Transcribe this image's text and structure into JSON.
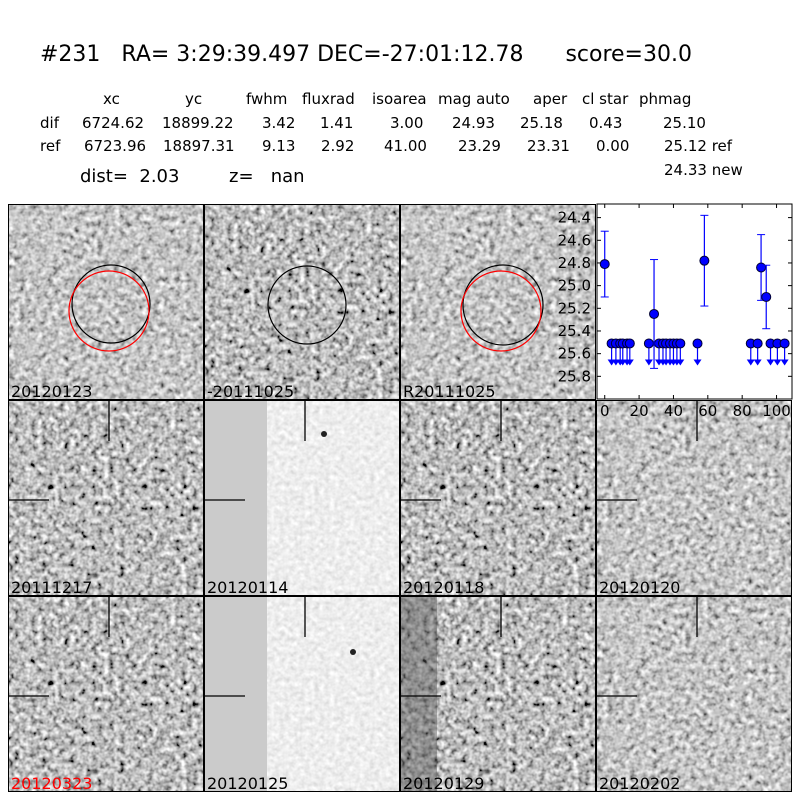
{
  "title": {
    "id": "#231",
    "ra": "RA= 3:29:39.497",
    "dec": "DEC=-27:01:12.78",
    "score": "score=30.0"
  },
  "table": {
    "headers": [
      "xc",
      "yc",
      "fwhm",
      "fluxrad",
      "isoarea",
      "mag auto",
      "aper",
      "cl star",
      "phmag"
    ],
    "dif": {
      "label": "dif",
      "values": [
        "6724.62",
        "18899.22",
        "3.42",
        "1.41",
        "3.00",
        "24.93",
        "25.18",
        "0.43",
        "25.10"
      ]
    },
    "ref": {
      "label": "ref",
      "values": [
        "6723.96",
        "18897.31",
        "9.13",
        "2.92",
        "41.00",
        "23.29",
        "23.31",
        "0.00",
        "25.12 ref"
      ]
    },
    "new_mag": "24.33 new",
    "dist": "dist=  2.03",
    "z": "z=   nan"
  },
  "stamps": [
    {
      "label": "20120123",
      "color": "#000000"
    },
    {
      "label": "-20111025",
      "color": "#000000"
    },
    {
      "label": "R20111025",
      "color": "#000000"
    },
    {
      "label": "20111217",
      "color": "#000000"
    },
    {
      "label": "20120114",
      "color": "#000000"
    },
    {
      "label": "20120118",
      "color": "#000000"
    },
    {
      "label": "20120120",
      "color": "#000000"
    },
    {
      "label": "20120323",
      "color": "#ff0000"
    },
    {
      "label": "20120125",
      "color": "#000000"
    },
    {
      "label": "20120129",
      "color": "#000000"
    },
    {
      "label": "20120202",
      "color": "#000000"
    }
  ],
  "chart_data": {
    "type": "scatter",
    "color": "#0000ff",
    "xlim": [
      -4.5,
      109
    ],
    "ylim": [
      26.0,
      24.28
    ],
    "y_inverted": true,
    "xticks": [
      0,
      20,
      40,
      60,
      80,
      100
    ],
    "yticks": [
      24.4,
      24.6,
      24.8,
      25.0,
      25.2,
      25.4,
      25.6,
      25.8
    ],
    "ytick_labels": [
      "24.4",
      "24.6",
      "24.8",
      "25.0",
      "25.2",
      "25.4",
      "25.6",
      "25.8"
    ],
    "xtick_labels": [
      "0",
      "20",
      "40",
      "60",
      "80",
      "100"
    ],
    "detections": [
      {
        "x": 0,
        "y": 24.81,
        "err": 0.29
      },
      {
        "x": 28.7,
        "y": 25.25,
        "err": 0.48
      },
      {
        "x": 58,
        "y": 24.78,
        "err": 0.4
      },
      {
        "x": 91,
        "y": 24.84,
        "err": 0.29
      },
      {
        "x": 94,
        "y": 25.1,
        "err": 0.28
      }
    ],
    "upper_limits": {
      "y": 25.51,
      "x": [
        4,
        6.5,
        9,
        10.5,
        13,
        14.6,
        25.7,
        31.6,
        33.9,
        35.7,
        38,
        40,
        42,
        44,
        54,
        85,
        89,
        96.5,
        100.5,
        104.7
      ]
    }
  }
}
